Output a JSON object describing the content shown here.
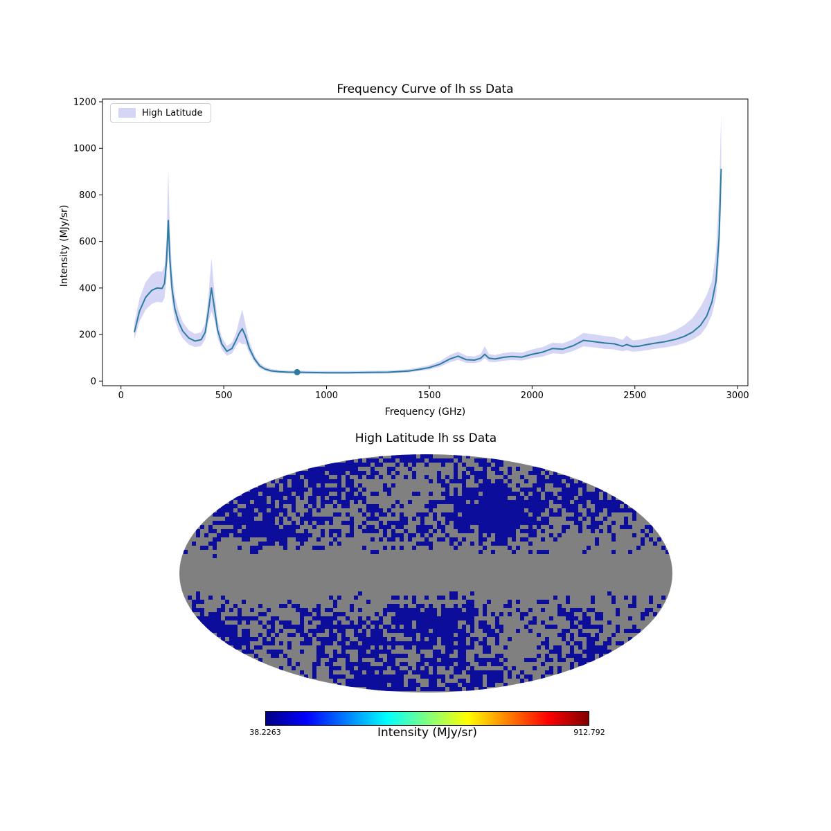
{
  "figure": {
    "background_color": "#ffffff"
  },
  "chart_data": [
    {
      "type": "line",
      "title": "Frequency Curve of lh ss Data",
      "xlabel": "Frequency (GHz)",
      "ylabel": "Intensity (MJy/sr)",
      "xlim": [
        -90,
        3050
      ],
      "ylim": [
        -20,
        1212
      ],
      "x_ticks": [
        0,
        500,
        1000,
        1500,
        2000,
        2500,
        3000
      ],
      "y_ticks": [
        0,
        200,
        400,
        600,
        800,
        1000,
        1200
      ],
      "grid": false,
      "legend_position": "upper left",
      "legend": [
        {
          "label": "High Latitude",
          "color": "#b9b9f0"
        }
      ],
      "line_color": "#2b7c9e",
      "band_color": "#b9b9f0",
      "band_opacity": 0.6,
      "marker": {
        "x": 857,
        "y": 38.2263
      },
      "x": [
        65,
        90,
        120,
        150,
        175,
        200,
        212,
        222,
        230,
        238,
        248,
        262,
        280,
        300,
        330,
        360,
        390,
        410,
        425,
        440,
        455,
        470,
        490,
        515,
        540,
        560,
        575,
        590,
        605,
        625,
        650,
        675,
        700,
        730,
        770,
        820,
        857,
        900,
        950,
        1000,
        1100,
        1200,
        1300,
        1400,
        1450,
        1500,
        1550,
        1600,
        1640,
        1680,
        1720,
        1750,
        1770,
        1790,
        1820,
        1860,
        1900,
        1950,
        2000,
        2050,
        2100,
        2150,
        2200,
        2250,
        2300,
        2350,
        2400,
        2440,
        2460,
        2490,
        2520,
        2560,
        2600,
        2650,
        2700,
        2740,
        2780,
        2820,
        2850,
        2875,
        2895,
        2910,
        2920
      ],
      "y": [
        210,
        300,
        360,
        390,
        400,
        398,
        420,
        520,
        690,
        520,
        400,
        310,
        255,
        215,
        185,
        172,
        178,
        210,
        300,
        400,
        310,
        220,
        160,
        128,
        140,
        175,
        205,
        225,
        195,
        140,
        95,
        65,
        52,
        44,
        40,
        38,
        38,
        37,
        36.5,
        36,
        36,
        37,
        38,
        43,
        50,
        58,
        72,
        95,
        107,
        92,
        90,
        98,
        115,
        98,
        95,
        102,
        106,
        103,
        115,
        124,
        140,
        137,
        152,
        175,
        170,
        164,
        160,
        150,
        157,
        148,
        150,
        157,
        163,
        170,
        180,
        192,
        210,
        240,
        280,
        340,
        430,
        620,
        912
      ],
      "y_lower": [
        179,
        255,
        306,
        332,
        340,
        338,
        357,
        442,
        560,
        442,
        340,
        264,
        217,
        183,
        157,
        146,
        151,
        179,
        255,
        300,
        264,
        187,
        136,
        109,
        119,
        149,
        168,
        158,
        160,
        119,
        81,
        55,
        44,
        37,
        34,
        32,
        32,
        31,
        31,
        31,
        31,
        31,
        32,
        37,
        43,
        49,
        61,
        81,
        91,
        78,
        77,
        83,
        98,
        83,
        81,
        87,
        90,
        88,
        98,
        105,
        119,
        116,
        129,
        149,
        145,
        139,
        136,
        128,
        133,
        126,
        128,
        133,
        139,
        145,
        153,
        163,
        178,
        200,
        235,
        285,
        360,
        520,
        760
      ],
      "y_upper": [
        248,
        354,
        425,
        460,
        472,
        470,
        496,
        614,
        910,
        640,
        480,
        366,
        301,
        254,
        218,
        203,
        210,
        248,
        360,
        530,
        380,
        260,
        189,
        151,
        165,
        207,
        260,
        308,
        245,
        168,
        112,
        77,
        61,
        52,
        47,
        45,
        45,
        44,
        43,
        43,
        43,
        44,
        45,
        51,
        59,
        68,
        85,
        112,
        126,
        109,
        106,
        116,
        150,
        116,
        112,
        120,
        125,
        122,
        136,
        146,
        165,
        162,
        179,
        207,
        201,
        194,
        189,
        177,
        195,
        175,
        177,
        185,
        192,
        201,
        220,
        240,
        270,
        320,
        370,
        430,
        560,
        800,
        1150
      ]
    },
    {
      "type": "heatmap",
      "projection": "mollweide",
      "title": "High Latitude lh ss Data",
      "masked_color": "#808080",
      "data_color": "#0d0d9c",
      "colorbar": {
        "title": "Intensity (MJy/sr)",
        "min": 38.2263,
        "max": 912.792,
        "min_label": "38.2263",
        "max_label": "912.792",
        "colormap": "jet",
        "colormap_stops": [
          [
            0,
            "#000083"
          ],
          [
            0.125,
            "#0000ff"
          ],
          [
            0.375,
            "#00ffff"
          ],
          [
            0.625,
            "#ffff00"
          ],
          [
            0.875,
            "#ff0000"
          ],
          [
            1,
            "#800000"
          ]
        ]
      }
    }
  ]
}
